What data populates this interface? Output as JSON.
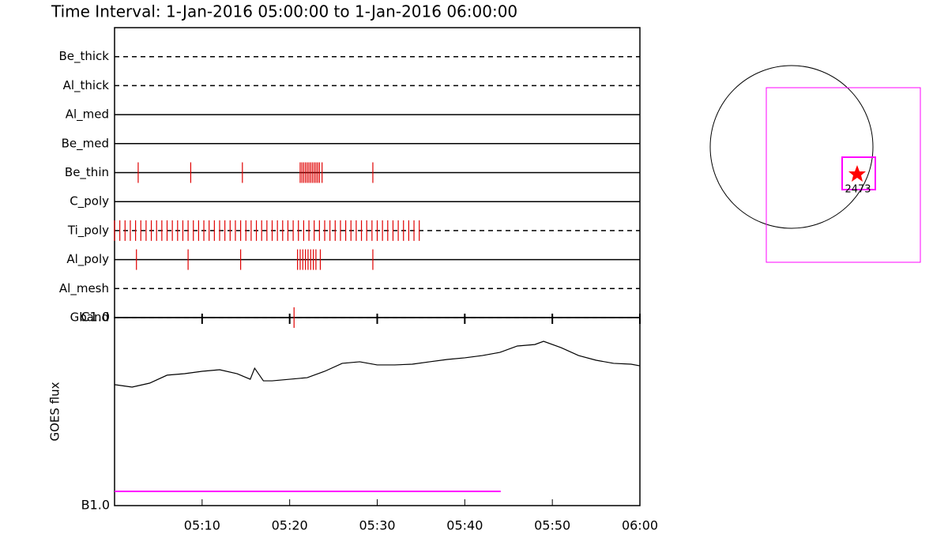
{
  "title": "Time Interval:  1-Jan-2016 05:00:00 to  1-Jan-2016 06:00:00",
  "sun_map": {
    "label": "2473"
  },
  "chart_data": [
    {
      "type": "event",
      "categories": [
        "Be_thick",
        "Al_thick",
        "Al_med",
        "Be_med",
        "Be_thin",
        "C_poly",
        "Ti_poly",
        "Al_poly",
        "Al_mesh",
        "Gband"
      ],
      "line_styles": [
        "dashed",
        "dashed",
        "solid",
        "solid",
        "solid",
        "solid",
        "dashed",
        "solid",
        "dashed",
        "dashed"
      ],
      "color": "#e00000",
      "xlim": [
        0,
        60
      ],
      "events": [
        [],
        [],
        [],
        [],
        [
          2.7,
          8.7,
          14.6,
          21.2,
          21.4,
          21.6,
          21.8,
          22.0,
          22.2,
          22.4,
          22.6,
          22.8,
          23.0,
          23.2,
          23.4,
          23.7,
          29.5
        ],
        [],
        [
          0,
          0.6,
          1.2,
          1.8,
          2.4,
          3,
          3.6,
          4.2,
          4.8,
          5.4,
          6,
          6.6,
          7.2,
          7.8,
          8.4,
          9,
          9.6,
          10.2,
          10.8,
          11.4,
          12,
          12.6,
          13.2,
          13.8,
          14.4,
          15,
          15.6,
          16.2,
          16.8,
          17.4,
          18,
          18.6,
          19.2,
          19.8,
          20.4,
          21,
          21.6,
          22.2,
          22.8,
          23.4,
          24,
          24.6,
          25.2,
          25.8,
          26.4,
          27,
          27.6,
          28.2,
          28.8,
          29.4,
          30,
          30.6,
          31.2,
          31.8,
          32.4,
          33,
          33.6,
          34.2,
          34.8
        ],
        [
          2.5,
          8.4,
          14.4,
          20.9,
          21.2,
          21.5,
          21.8,
          22.1,
          22.4,
          22.7,
          23.0,
          23.5,
          29.5
        ],
        [],
        [
          20.5
        ]
      ]
    },
    {
      "type": "line",
      "ylabel": "GOES flux",
      "log_y": true,
      "xlim": [
        0,
        60
      ],
      "xticks": [
        {
          "value": 10,
          "label": "05:10"
        },
        {
          "value": 20,
          "label": "05:20"
        },
        {
          "value": 30,
          "label": "05:30"
        },
        {
          "value": 40,
          "label": "05:40"
        },
        {
          "value": 50,
          "label": "05:50"
        },
        {
          "value": 60,
          "label": "06:00"
        }
      ],
      "ylim": [
        1e-07,
        1e-06
      ],
      "yticks": [
        {
          "value": 1e-06,
          "label": "C1.0"
        },
        {
          "value": 1e-07,
          "label": "B1.0"
        }
      ],
      "series": [
        {
          "color": "#000000",
          "x": [
            0,
            2,
            4,
            6,
            8,
            10,
            12,
            14,
            15.5,
            16,
            17,
            18,
            20,
            22,
            24,
            26,
            28,
            30,
            32,
            34,
            36,
            38,
            40,
            42,
            44,
            46,
            48,
            49,
            51,
            53,
            55,
            57,
            59,
            60
          ],
          "values": [
            4.4e-07,
            4.27e-07,
            4.48e-07,
            4.94e-07,
            5.03e-07,
            5.18e-07,
            5.28e-07,
            5.03e-07,
            4.7e-07,
            5.38e-07,
            4.61e-07,
            4.61e-07,
            4.7e-07,
            4.79e-07,
            5.18e-07,
            5.71e-07,
            5.82e-07,
            5.6e-07,
            5.6e-07,
            5.65e-07,
            5.82e-07,
            5.99e-07,
            6.11e-07,
            6.28e-07,
            6.53e-07,
            7.06e-07,
            7.19e-07,
            7.48e-07,
            6.92e-07,
            6.28e-07,
            5.93e-07,
            5.71e-07,
            5.65e-07,
            5.54e-07
          ]
        },
        {
          "color": "#ff00ff",
          "x": [
            0,
            44.1
          ],
          "values": [
            1.19e-07,
            1.19e-07
          ]
        }
      ]
    }
  ]
}
